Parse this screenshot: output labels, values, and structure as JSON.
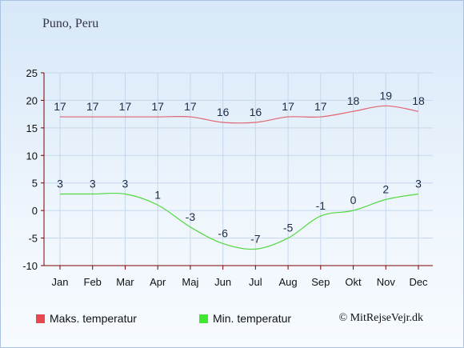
{
  "header": {
    "location": "Puno, Peru"
  },
  "footer": {
    "credit": "© MitRejseVejr.dk"
  },
  "colors": {
    "max": "#e8474e",
    "min": "#3ee82e",
    "axis": "#7a0000",
    "grid": "#c6d7ec",
    "line_max": "#e06570",
    "line_min": "#53d843"
  },
  "chart_data": {
    "type": "line",
    "categories": [
      "Jan",
      "Feb",
      "Mar",
      "Apr",
      "Maj",
      "Jun",
      "Jul",
      "Aug",
      "Sep",
      "Okt",
      "Nov",
      "Dec"
    ],
    "ylim": [
      -10,
      25
    ],
    "yticks": [
      -10,
      -5,
      0,
      5,
      10,
      15,
      20,
      25
    ],
    "grid": true,
    "legend": "bottom-left",
    "series": [
      {
        "name": "Maks. temperatur",
        "values": [
          17,
          17,
          17,
          17,
          17,
          16,
          16,
          17,
          17,
          18,
          19,
          18
        ]
      },
      {
        "name": "Min. temperatur",
        "values": [
          3,
          3,
          3,
          1,
          -3,
          -6,
          -7,
          -5,
          -1,
          0,
          2,
          3
        ]
      }
    ]
  }
}
